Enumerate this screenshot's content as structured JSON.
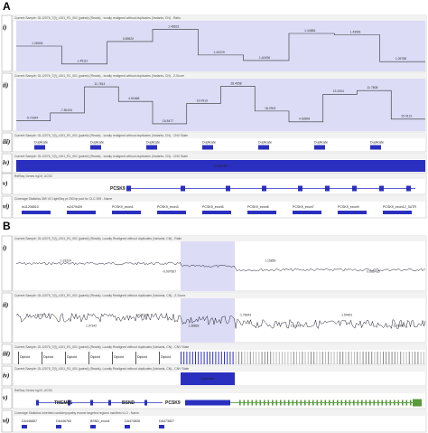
{
  "panel_a": {
    "label": "A",
    "tracks": [
      {
        "roman": "i)",
        "header": "Current Sample: GL12076_T(f)_L001_R1_001 (paired) (Reads) - locally realigned without duplicates (Variants, CN) - Ratio",
        "values": [
          "1.26006",
          "1.45111",
          "0.89820",
          "1.46622",
          "1.40219",
          "1.40496",
          "1.44884",
          "1.43581",
          "1.05788"
        ]
      },
      {
        "roman": "ii)",
        "header": "Current Sample: GL12076_T(f)_L001_R1_001 (paired) (Reads) - locally realigned without duplicates (Variants, CN) - Z-Score",
        "values": [
          "-5.70344",
          "-7.86134",
          "11.7814",
          "4.51668",
          "18.8477",
          "19.0913",
          "28.4958",
          "18.2902",
          "4.92808",
          "13.2004",
          "11.7808",
          "15.9121"
        ]
      },
      {
        "roman": "iii)",
        "header": "Current Sample: GL12076_T(f)_L001_R1_001 (paired) (Reads) - locally realigned without duplicates (Variants, CN) - CNV State",
        "labels": [
          "Duplicate",
          "Duplicate",
          "Duplicate",
          "Duplicate",
          "Duplicate",
          "Duplicate",
          "Duplicate"
        ]
      },
      {
        "roman": "iv)",
        "header": "Current Sample: GL12076_T(f)_L001_R1_001 (paired) (Reads) - locally realigned without duplicates (Variants, CN) - CNV State",
        "labels": [
          "Duplicate"
        ]
      },
      {
        "roman": "v)",
        "header": "RefSeq Genes hg19, UCSC",
        "labels": [
          "PCSK9"
        ]
      },
      {
        "roman": "vi)",
        "header": "Coverage Statistics 369 V2 LightSeq pt 250 bp pad for CLC 005 - Name",
        "labels": [
          "rs11206510",
          "rs2479409",
          "PCSK9_exon1",
          "PCSK9_exon3",
          "PCSK9_exon5",
          "PCSK9_exon6",
          "PCSK9_exon7",
          "PCSK9_exon9",
          "PCSK9_exon12_3UTR"
        ]
      }
    ]
  },
  "panel_b": {
    "label": "B",
    "tracks": [
      {
        "roman": "i)",
        "header": "Current Sample: GL12075_T(f)_L001_R1_001 (paired) (Reads), Locally Realigned without duplicates (Variants, CN) - Ratio",
        "values": [
          "1.33224",
          "-0.997667",
          "1.15859",
          "0.668435"
        ]
      },
      {
        "roman": "ii)",
        "header": "Current Sample: GL12075_T(f)_L001_R1_001 (paired) (Reads), Locally Realigned without duplicates (Variants, CN) - Z-Score",
        "values": [
          "1.62617",
          "1.37342",
          "-0.86144",
          "1.38883",
          "-1.76643",
          "2.31141",
          "1.54461",
          "-1.78803"
        ]
      },
      {
        "roman": "iii)",
        "header": "Current Sample: GL12075_T(f)_L001_R1_001 (paired) (Reads), Locally Realigned without duplicates (Variants, CN) - CNV State",
        "labels": [
          "Diploid",
          "Diploid",
          "Diploid",
          "Diploid",
          "Diploid",
          "Diploid",
          "Diploid"
        ]
      },
      {
        "roman": "iv)",
        "header": "Current Sample: GL12075_T(f)_L001_R1_001 (paired) (Reads), Locally Realigned without duplicates (Variants, CN) - CNV State",
        "labels": [
          "Duplicate"
        ]
      },
      {
        "roman": "v)",
        "header": "RefSeq Genes hg19, UCSC",
        "labels": [
          "TMEM61",
          "BSND",
          "PCSK9"
        ]
      },
      {
        "roman": "vi)",
        "header": "Coverage Statistics Inherited cardiomyopathy exome targeted regions manifest v1.2 - Name",
        "labels": [
          "DA446857",
          "DA446760",
          "BSND_exon1",
          "DA473826",
          "DA473827"
        ]
      }
    ]
  }
}
